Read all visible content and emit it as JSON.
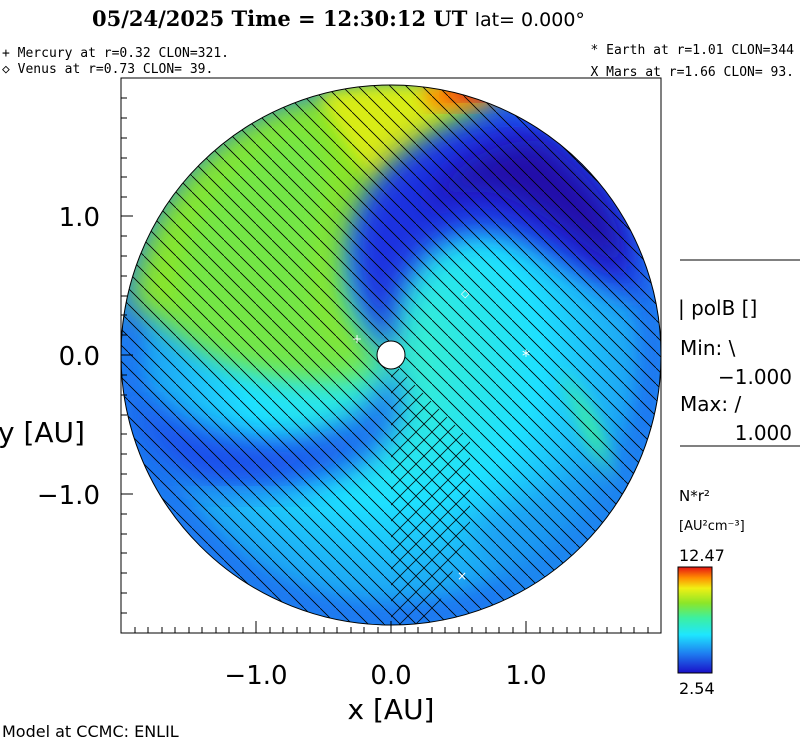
{
  "header": {
    "title": "05/24/2025 Time = 12:30:12 UT",
    "lat_label": "lat= 0.000°",
    "left_lines": [
      "+ Mercury at r=0.32 CLON=321.",
      "◇ Venus at r=0.73 CLON= 39."
    ],
    "right_lines": [
      "* Earth at  r=1.01 CLON=344",
      "X Mars at r=1.66 CLON= 93."
    ]
  },
  "axes": {
    "xlabel": "x [AU]",
    "ylabel": "y [AU]",
    "xticks": [
      "−1.0",
      "0.0",
      "1.0"
    ],
    "yticks": [
      "1.0",
      "0.0",
      "−1.0"
    ]
  },
  "legend": {
    "polarity_label": "| polB []",
    "min_label": "Min: \\",
    "min_value": "−1.000",
    "max_label": "Max: /",
    "max_value": "1.000",
    "colorbar_title": "N*r²",
    "colorbar_units": "[AU²cm⁻³]",
    "colorbar_max": "12.47",
    "colorbar_min": "2.54",
    "colors": [
      "#1a10c8",
      "#1e7cf0",
      "#1ee6ff",
      "#3cf0a0",
      "#8ce628",
      "#f0f014",
      "#ff8c00",
      "#e61414"
    ]
  },
  "footer": "Model at CCMC: ENLIL",
  "map_data": {
    "type": "heliospheric density map",
    "quantity": "N*r^2",
    "range": [
      2.54,
      12.47
    ],
    "x_range_au": [
      -2.0,
      2.0
    ],
    "y_range_au": [
      -2.0,
      2.0
    ],
    "bodies": [
      {
        "name": "Mercury",
        "symbol": "+",
        "r": 0.32,
        "clon": 321
      },
      {
        "name": "Venus",
        "symbol": "◇",
        "r": 0.73,
        "clon": 39
      },
      {
        "name": "Earth",
        "symbol": "*",
        "r": 1.01,
        "clon": 344
      },
      {
        "name": "Mars",
        "symbol": "X",
        "r": 1.66,
        "clon": 93
      }
    ]
  }
}
